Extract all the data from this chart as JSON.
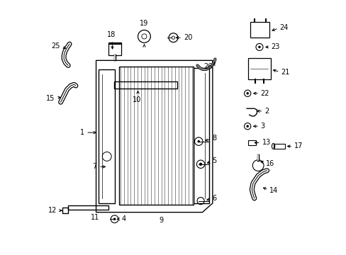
{
  "title": "",
  "background_color": "#ffffff",
  "line_color": "#000000",
  "fig_width": 4.89,
  "fig_height": 3.6,
  "dpi": 100
}
